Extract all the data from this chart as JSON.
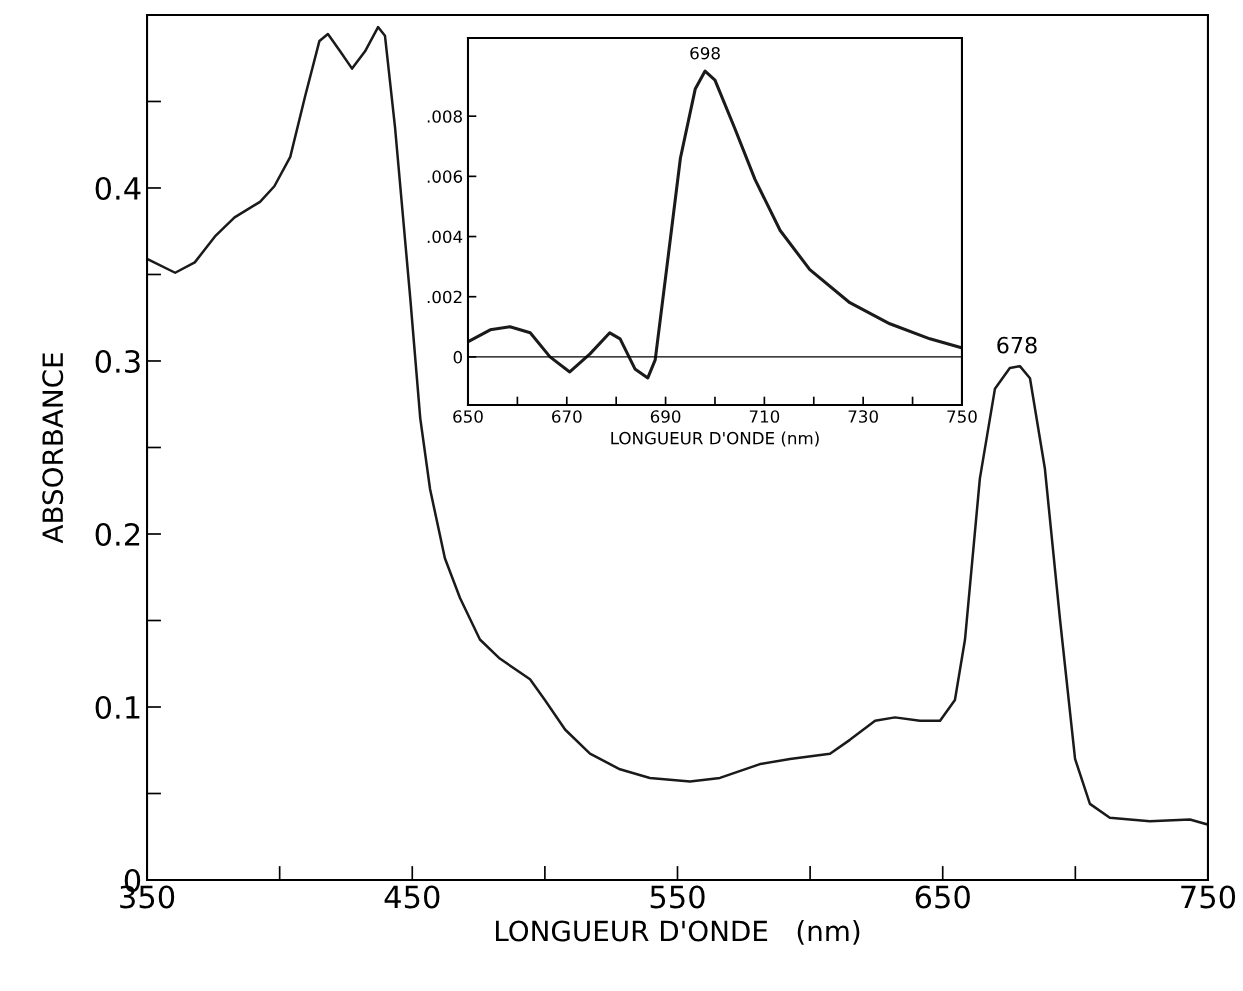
{
  "chart_data": [
    {
      "type": "line",
      "xlabel": "LONGUEUR D'ONDE   (nm)",
      "ylabel": "ABSORBANCE",
      "color": "#1a1a1a",
      "x": [
        350,
        360.6,
        368,
        375.6,
        383,
        392.6,
        398,
        404,
        409.6,
        415,
        418.2,
        422.8,
        427.3,
        432.2,
        437.1,
        439.7,
        443.5,
        449.2,
        453,
        456.7,
        462.3,
        468,
        475.5,
        483,
        494.4,
        500,
        507.6,
        517,
        528.3,
        539.6,
        554.7,
        566,
        581.1,
        592.4,
        607.5,
        615,
        624.5,
        632,
        641.4,
        649,
        654.6,
        658.4,
        664,
        669.7,
        675.3,
        679.1,
        682.9,
        688.5,
        694.2,
        699.9,
        705.5,
        713,
        728.1,
        743.2,
        750
      ],
      "values": [
        0.359,
        0.351,
        0.357,
        0.372,
        0.383,
        0.392,
        0.401,
        0.418,
        0.453,
        0.485,
        0.489,
        0.479,
        0.469,
        0.479,
        0.493,
        0.488,
        0.435,
        0.337,
        0.267,
        0.226,
        0.186,
        0.163,
        0.139,
        0.128,
        0.116,
        0.104,
        0.087,
        0.073,
        0.064,
        0.059,
        0.057,
        0.059,
        0.067,
        0.07,
        0.073,
        0.081,
        0.092,
        0.094,
        0.092,
        0.092,
        0.104,
        0.139,
        0.232,
        0.284,
        0.296,
        0.297,
        0.29,
        0.238,
        0.151,
        0.07,
        0.044,
        0.036,
        0.034,
        0.035,
        0.032
      ],
      "xlim": [
        350,
        750
      ],
      "ylim": [
        0,
        0.5
      ],
      "xticks": [
        350,
        {
          "value": 400,
          "label": null
        },
        450,
        {
          "value": 500,
          "label": null
        },
        550,
        {
          "value": 600,
          "label": null
        },
        650,
        {
          "value": 700,
          "label": null
        },
        750
      ],
      "yticks": [
        0,
        {
          "value": 0.05,
          "label": null
        },
        0.1,
        {
          "value": 0.15,
          "label": null
        },
        0.2,
        {
          "value": 0.25,
          "label": null
        },
        0.3,
        {
          "value": 0.35,
          "label": null
        },
        0.4,
        {
          "value": 0.45,
          "label": null
        }
      ],
      "annotations": [
        {
          "text": "678",
          "x": 678,
          "y": 0.297
        }
      ],
      "grid": false,
      "legend": false
    },
    {
      "type": "line",
      "xlabel": "LONGUEUR D'ONDE (nm)",
      "color": "#1a1a1a",
      "x": [
        650,
        654.5,
        658.5,
        662.6,
        666.6,
        670.6,
        674.7,
        678.7,
        680.8,
        683.8,
        686.4,
        687.9,
        690.5,
        693,
        696,
        698,
        700,
        704,
        708.1,
        713.2,
        719.2,
        727.3,
        735.4,
        743.5,
        750
      ],
      "values": [
        0.0005,
        0.0009,
        0.001,
        0.0008,
        0,
        -0.0005,
        0.0001,
        0.0008,
        0.0006,
        -0.0004,
        -0.0007,
        -0.0001,
        0.0033,
        0.0066,
        0.0089,
        0.0095,
        0.0092,
        0.0076,
        0.0059,
        0.0042,
        0.0029,
        0.0018,
        0.0011,
        0.0006,
        0.0003
      ],
      "xlim": [
        650,
        750
      ],
      "ylim": [
        -0.0016,
        0.0106
      ],
      "xticks": [
        650,
        {
          "value": 660,
          "label": null
        },
        670,
        {
          "value": 680,
          "label": null
        },
        690,
        {
          "value": 700,
          "label": null
        },
        710,
        {
          "value": 720,
          "label": null
        },
        730,
        {
          "value": 740,
          "label": null
        },
        750
      ],
      "yticks": [
        {
          "value": 0,
          "label": "0"
        },
        {
          "value": 0.002,
          "label": ".002"
        },
        {
          "value": 0.004,
          "label": ".004"
        },
        {
          "value": 0.006,
          "label": ".006"
        },
        {
          "value": 0.008,
          "label": ".008"
        }
      ],
      "ref_lines": [
        {
          "axis": "y",
          "value": 0
        }
      ],
      "annotations": [
        {
          "text": "698",
          "x": 698,
          "y": 0.0095
        }
      ],
      "grid": false,
      "legend": false
    }
  ]
}
